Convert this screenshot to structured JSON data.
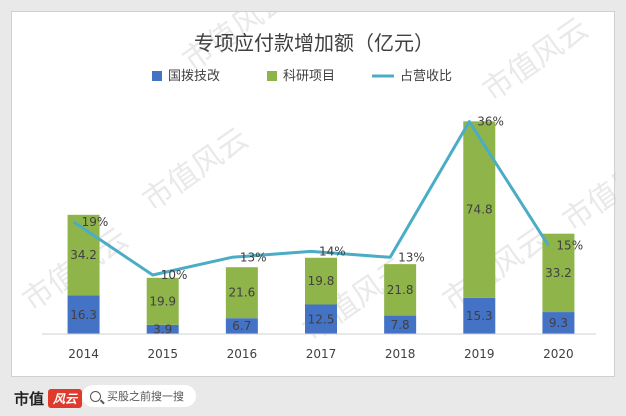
{
  "chart_data": {
    "type": "bar",
    "stacked": true,
    "title": "专项应付款增加额（亿元）",
    "categories": [
      "2014",
      "2015",
      "2016",
      "2017",
      "2018",
      "2019",
      "2020"
    ],
    "series": [
      {
        "name": "国拨技改",
        "kind": "bar",
        "color": "#4472c4",
        "values": [
          16.3,
          3.9,
          6.7,
          12.5,
          7.8,
          15.3,
          9.3
        ]
      },
      {
        "name": "科研项目",
        "kind": "bar",
        "color": "#8fb44a",
        "values": [
          34.2,
          19.9,
          21.6,
          19.8,
          21.8,
          74.8,
          33.2
        ]
      },
      {
        "name": "占营收比",
        "kind": "line",
        "color": "#4bacc6",
        "values": [
          19,
          10,
          13,
          14,
          13,
          36,
          15
        ],
        "labels": [
          "19%",
          "10%",
          "13%",
          "14%",
          "13%",
          "36%",
          "15%"
        ]
      }
    ],
    "ylim": [
      0,
      100
    ],
    "y2lim": [
      0,
      40
    ],
    "legend": "top",
    "grid": false
  },
  "watermark": "市值风云",
  "footer": {
    "logo_text": "市值",
    "logo_badge": "风云",
    "search_text": "买股之前搜一搜"
  }
}
